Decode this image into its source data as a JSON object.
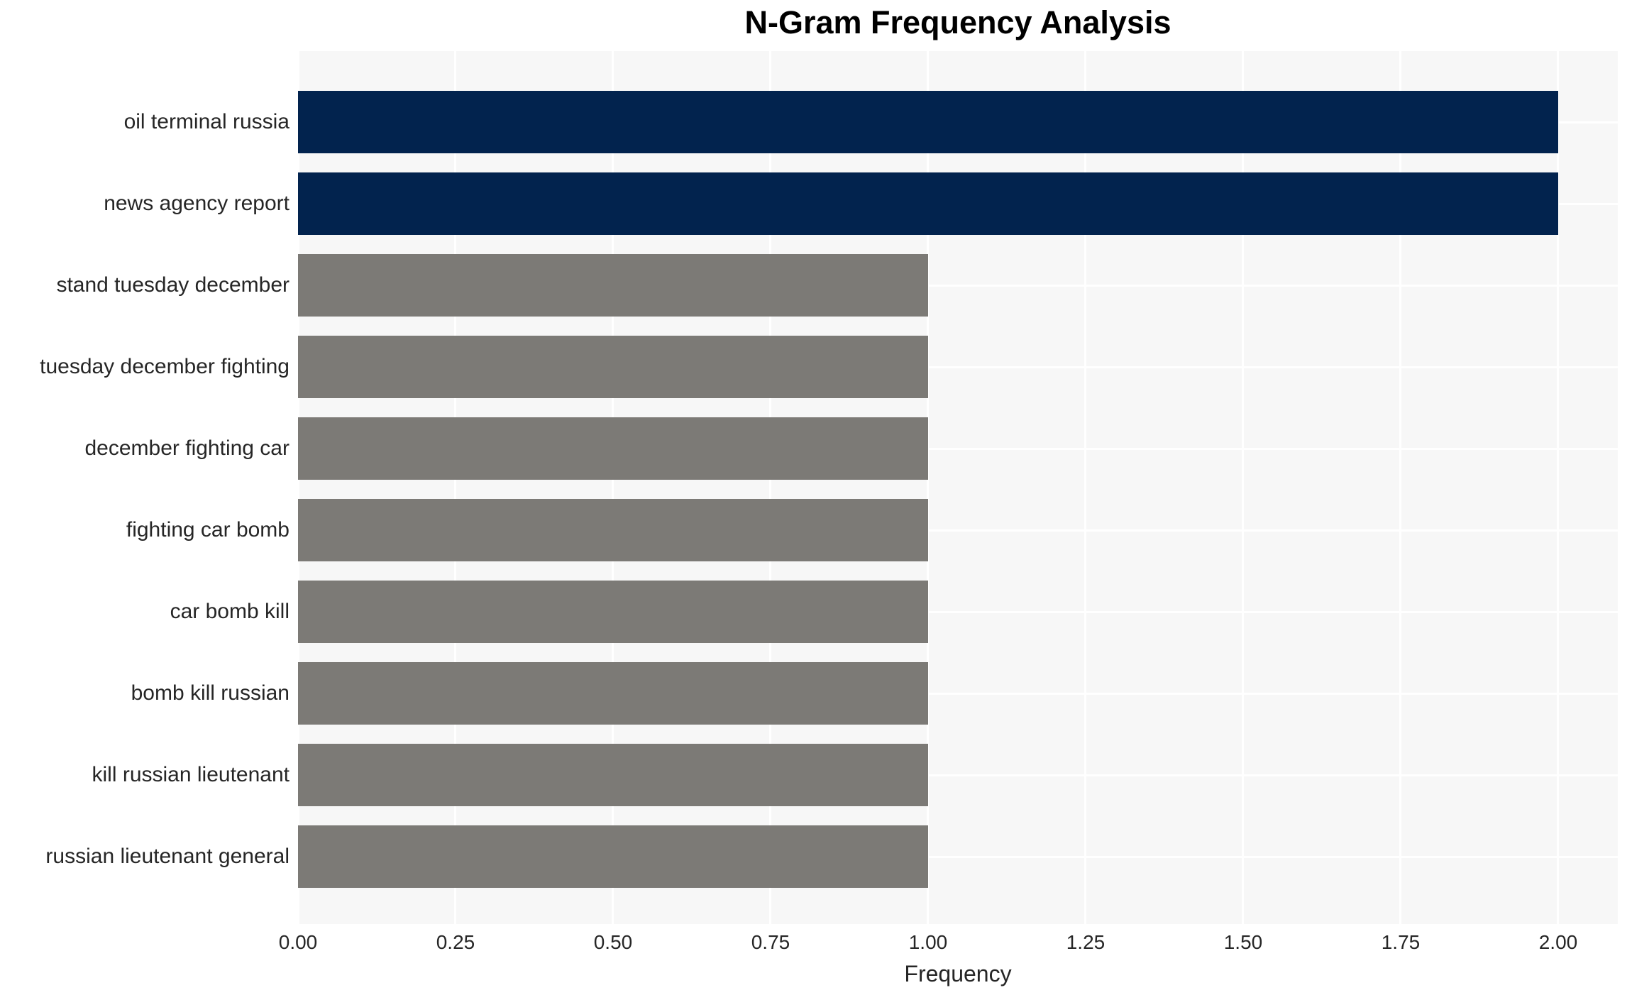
{
  "title": "N-Gram Frequency Analysis",
  "chart_data": {
    "type": "bar",
    "orientation": "horizontal",
    "title": "N-Gram Frequency Analysis",
    "xlabel": "Frequency",
    "ylabel": "",
    "categories": [
      "oil terminal russia",
      "news agency report",
      "stand tuesday december",
      "tuesday december fighting",
      "december fighting car",
      "fighting car bomb",
      "car bomb kill",
      "bomb kill russian",
      "kill russian lieutenant",
      "russian lieutenant general"
    ],
    "values": [
      2,
      2,
      1,
      1,
      1,
      1,
      1,
      1,
      1,
      1
    ],
    "bar_colors": [
      "#02234e",
      "#02234e",
      "#7c7a76",
      "#7c7a76",
      "#7c7a76",
      "#7c7a76",
      "#7c7a76",
      "#7c7a76",
      "#7c7a76",
      "#7c7a76"
    ],
    "xlim": [
      0,
      2.0946
    ],
    "xticks": [
      0,
      0.25,
      0.5,
      0.75,
      1.0,
      1.25,
      1.5,
      1.75,
      2.0
    ],
    "xtick_labels": [
      "0.00",
      "0.25",
      "0.50",
      "0.75",
      "1.00",
      "1.25",
      "1.50",
      "1.75",
      "2.00"
    ],
    "grid": true,
    "legend": false,
    "colors": {
      "plot_background": "#f7f7f7",
      "grid": "#ffffff",
      "tick_text": "#262626",
      "title_text": "#000000",
      "highlight_bar": "#02234e",
      "default_bar": "#7c7a76"
    }
  }
}
